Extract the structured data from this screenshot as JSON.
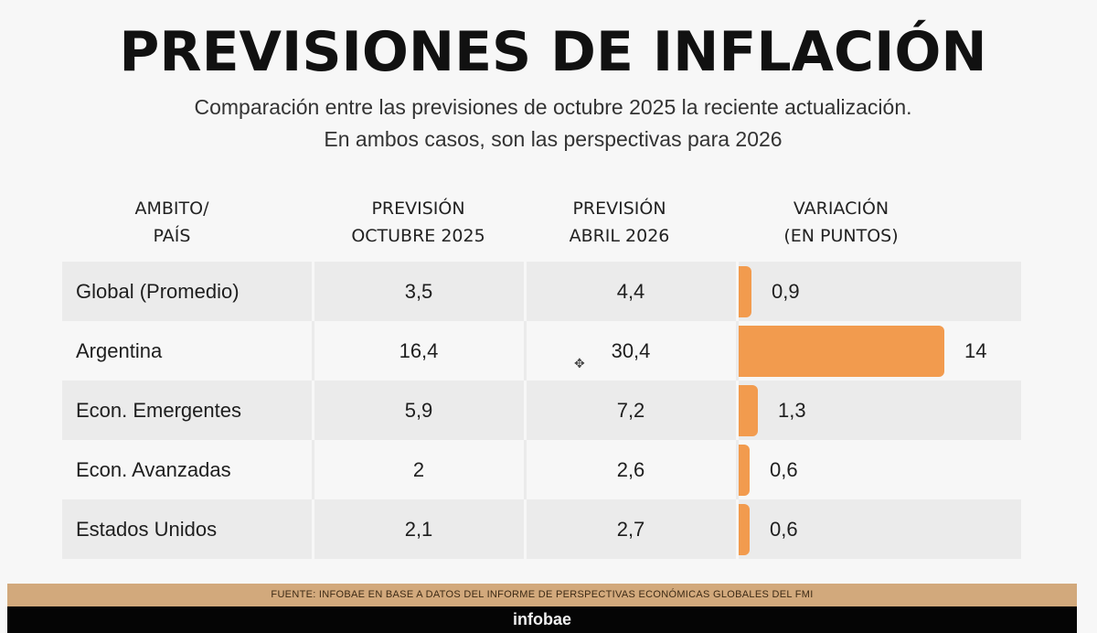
{
  "title": "PREVISIONES DE INFLACIÓN",
  "subtitle_line1": "Comparación entre las previsiones de octubre 2025 la reciente actualización.",
  "subtitle_line2": "En ambos casos, son las perspectivas para 2026",
  "columns": {
    "ambito": "AMBITO/\nPAÍS",
    "octubre": "PREVISIÓN\nOCTUBRE 2025",
    "abril": "PREVISIÓN\nABRIL 2026",
    "variacion": "VARIACIÓN\n(EN PUNTOS)"
  },
  "colors": {
    "bar": "#f29b4e",
    "source_band": "#d2a97c",
    "footer": "#050505"
  },
  "chart_data": {
    "type": "table",
    "rows": [
      {
        "name": "Global (Promedio)",
        "octubre_2025": "3,5",
        "abril_2026": "4,4",
        "variacion_label": "0,9",
        "variacion": 0.9
      },
      {
        "name": "Argentina",
        "octubre_2025": "16,4",
        "abril_2026": "30,4",
        "variacion_label": "14",
        "variacion": 14
      },
      {
        "name": "Econ. Emergentes",
        "octubre_2025": "5,9",
        "abril_2026": "7,2",
        "variacion_label": "1,3",
        "variacion": 1.3
      },
      {
        "name": "Econ. Avanzadas",
        "octubre_2025": "2",
        "abril_2026": "2,6",
        "variacion_label": "0,6",
        "variacion": 0.6
      },
      {
        "name": "Estados Unidos",
        "octubre_2025": "2,1",
        "abril_2026": "2,7",
        "variacion_label": "0,6",
        "variacion": 0.6
      }
    ]
  },
  "source": "FUENTE: INFOBAE EN BASE A DATOS DEL INFORME DE PERSPECTIVAS ECONÓMICAS GLOBALES DEL FMI",
  "brand": "infobae"
}
